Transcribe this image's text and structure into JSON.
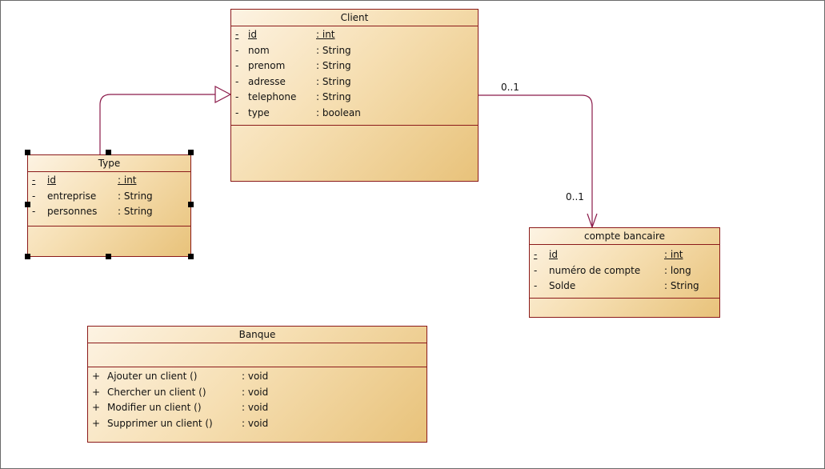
{
  "classes": {
    "client": {
      "title": "Client",
      "attributes": [
        {
          "visibility": "-",
          "name": "id",
          "type": ": int",
          "identifier": true
        },
        {
          "visibility": "-",
          "name": "nom",
          "type": ": String"
        },
        {
          "visibility": "-",
          "name": "prenom",
          "type": ": String"
        },
        {
          "visibility": "-",
          "name": "adresse",
          "type": ": String"
        },
        {
          "visibility": "-",
          "name": "telephone",
          "type": ": String"
        },
        {
          "visibility": "-",
          "name": "type",
          "type": ": boolean"
        }
      ]
    },
    "type": {
      "title": "Type",
      "attributes": [
        {
          "visibility": "-",
          "name": "id",
          "type": ": int",
          "identifier": true
        },
        {
          "visibility": "-",
          "name": "entreprise",
          "type": ": String"
        },
        {
          "visibility": "-",
          "name": "personnes",
          "type": ": String"
        }
      ]
    },
    "compte": {
      "title": "compte bancaire",
      "attributes": [
        {
          "visibility": "-",
          "name": "id",
          "type": ": int",
          "identifier": true
        },
        {
          "visibility": "-",
          "name": "numéro de compte",
          "type": ": long"
        },
        {
          "visibility": "-",
          "name": "Solde",
          "type": ": String"
        }
      ]
    },
    "banque": {
      "title": "Banque",
      "operations": [
        {
          "visibility": "+",
          "name": "Ajouter un client ()",
          "type": ": void"
        },
        {
          "visibility": "+",
          "name": "Chercher un client ()",
          "type": ": void"
        },
        {
          "visibility": "+",
          "name": "Modifier un client ()",
          "type": ": void"
        },
        {
          "visibility": "+",
          "name": "Supprimer un client ()",
          "type": ": void"
        }
      ]
    }
  },
  "associations": {
    "client_compte": {
      "source_multiplicity": "0..1",
      "target_multiplicity": "0..1"
    }
  },
  "colors": {
    "border": "#8b1a1a",
    "link": "#8b1a4a"
  }
}
